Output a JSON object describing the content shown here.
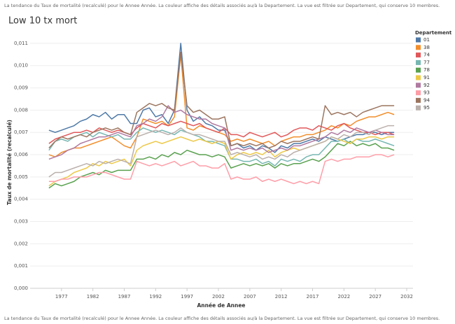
{
  "chart_data": {
    "type": "line",
    "subtitle": "La tendance du Taux de mortalité (recalculé) pour le Annee Année.  La couleur affiche des détails associés au/à la Departement. La vue est filtrée sur Departement, qui conserve 10 membres.",
    "title": "Low 10 tx mort",
    "caption": "La tendance du Taux de mortalité (recalculé) pour le Annee Année.  La couleur affiche des détails associés au/à la Departement. La vue est filtrée sur Departement, qui conserve 10 membres.",
    "x_label": "Année de Annee",
    "y_label": "Taux de mortalité (recalculé)",
    "legend_title": "Departement",
    "grid": true,
    "xlim": [
      1972,
      2033
    ],
    "xticks": [
      1977,
      1982,
      1987,
      1992,
      1997,
      2002,
      2007,
      2012,
      2017,
      2022,
      2027,
      2032
    ],
    "ylim": [
      0,
      0.0115
    ],
    "yticks": [
      {
        "value": 0,
        "label": "0,000"
      },
      {
        "value": 0.001,
        "label": "0,001"
      },
      {
        "value": 0.002,
        "label": "0,002"
      },
      {
        "value": 0.003,
        "label": "0,003"
      },
      {
        "value": 0.004,
        "label": "0,004"
      },
      {
        "value": 0.005,
        "label": "0,005"
      },
      {
        "value": 0.006,
        "label": "0,006"
      },
      {
        "value": 0.007,
        "label": "0,007"
      },
      {
        "value": 0.008,
        "label": "0,008"
      },
      {
        "value": 0.009,
        "label": "0,009"
      },
      {
        "value": 0.01,
        "label": "0,010"
      },
      {
        "value": 0.011,
        "label": "0,011"
      }
    ],
    "x": [
      1975,
      1976,
      1977,
      1978,
      1979,
      1980,
      1981,
      1982,
      1983,
      1984,
      1985,
      1986,
      1987,
      1988,
      1989,
      1990,
      1991,
      1992,
      1993,
      1994,
      1995,
      1996,
      1997,
      1998,
      1999,
      2000,
      2001,
      2002,
      2003,
      2004,
      2005,
      2006,
      2007,
      2008,
      2009,
      2010,
      2011,
      2012,
      2013,
      2014,
      2015,
      2016,
      2017,
      2018,
      2019,
      2020,
      2021,
      2022,
      2023,
      2024,
      2025,
      2026,
      2027,
      2028,
      2029,
      2030
    ],
    "series": [
      {
        "name": "01",
        "color": "#4e79a7",
        "values": [
          0.0071,
          0.007,
          0.0071,
          0.0072,
          0.0073,
          0.0075,
          0.0076,
          0.0078,
          0.0077,
          0.0079,
          0.0076,
          0.0078,
          0.0078,
          0.0074,
          0.0074,
          0.008,
          0.0081,
          0.0077,
          0.0078,
          0.0074,
          0.008,
          0.011,
          0.008,
          0.0075,
          0.0077,
          0.0074,
          0.0073,
          0.0071,
          0.0071,
          0.0064,
          0.0065,
          0.0063,
          0.0064,
          0.0062,
          0.0064,
          0.0063,
          0.0061,
          0.0064,
          0.0063,
          0.0065,
          0.0065,
          0.0066,
          0.0067,
          0.0066,
          0.0068,
          0.0067,
          0.0066,
          0.0067,
          0.0068,
          0.0069,
          0.0069,
          0.007,
          0.007,
          0.0069,
          0.007,
          0.007
        ]
      },
      {
        "name": "38",
        "color": "#f28e2b",
        "values": [
          0.006,
          0.0059,
          0.0061,
          0.0062,
          0.0063,
          0.0063,
          0.0064,
          0.0065,
          0.0066,
          0.0067,
          0.0068,
          0.0066,
          0.0064,
          0.0063,
          0.0068,
          0.0076,
          0.0075,
          0.0074,
          0.0075,
          0.0073,
          0.0077,
          0.0105,
          0.0072,
          0.0071,
          0.0073,
          0.0072,
          0.0071,
          0.007,
          0.0069,
          0.0066,
          0.0067,
          0.0066,
          0.0067,
          0.0066,
          0.0065,
          0.0066,
          0.0064,
          0.0066,
          0.0067,
          0.0068,
          0.0068,
          0.0069,
          0.0069,
          0.007,
          0.0071,
          0.0073,
          0.0072,
          0.0074,
          0.0073,
          0.0075,
          0.0076,
          0.0077,
          0.0077,
          0.0078,
          0.0079,
          0.0078
        ]
      },
      {
        "name": "74",
        "color": "#e15759",
        "values": [
          0.0065,
          0.0067,
          0.0068,
          0.0069,
          0.007,
          0.007,
          0.0071,
          0.007,
          0.0072,
          0.0071,
          0.007,
          0.0071,
          0.007,
          0.0069,
          0.0072,
          0.0074,
          0.0073,
          0.0072,
          0.0074,
          0.0073,
          0.0074,
          0.0075,
          0.0074,
          0.0073,
          0.0074,
          0.0072,
          0.0071,
          0.007,
          0.0072,
          0.0069,
          0.0069,
          0.0068,
          0.007,
          0.0069,
          0.0068,
          0.0069,
          0.007,
          0.0068,
          0.0069,
          0.0071,
          0.0072,
          0.0072,
          0.0071,
          0.0073,
          0.0072,
          0.0071,
          0.0073,
          0.0074,
          0.0072,
          0.0071,
          0.007,
          0.007,
          0.0069,
          0.007,
          0.007,
          0.0069
        ]
      },
      {
        "name": "77",
        "color": "#76b7b2",
        "values": [
          0.0062,
          0.0066,
          0.0067,
          0.0066,
          0.0068,
          0.0069,
          0.007,
          0.0068,
          0.007,
          0.0069,
          0.0068,
          0.0069,
          0.0067,
          0.0067,
          0.007,
          0.0072,
          0.0071,
          0.007,
          0.0071,
          0.007,
          0.0069,
          0.0071,
          0.007,
          0.0069,
          0.0068,
          0.0066,
          0.0066,
          0.0065,
          0.0064,
          0.0058,
          0.0058,
          0.0057,
          0.0057,
          0.0058,
          0.0056,
          0.0057,
          0.0055,
          0.0058,
          0.0057,
          0.0058,
          0.0057,
          0.0059,
          0.006,
          0.006,
          0.0063,
          0.0066,
          0.0066,
          0.0067,
          0.0065,
          0.0067,
          0.0066,
          0.0066,
          0.0067,
          0.0066,
          0.0065,
          0.0064
        ]
      },
      {
        "name": "78",
        "color": "#59a14f",
        "values": [
          0.0045,
          0.0047,
          0.0046,
          0.0047,
          0.0048,
          0.005,
          0.0051,
          0.0052,
          0.0051,
          0.0053,
          0.0052,
          0.0053,
          0.0053,
          0.0053,
          0.0058,
          0.0058,
          0.0059,
          0.0058,
          0.006,
          0.0059,
          0.0061,
          0.006,
          0.0062,
          0.0061,
          0.006,
          0.006,
          0.0059,
          0.006,
          0.0059,
          0.0054,
          0.0055,
          0.0056,
          0.0055,
          0.0056,
          0.0055,
          0.0056,
          0.0054,
          0.0056,
          0.0055,
          0.0056,
          0.0056,
          0.0057,
          0.0058,
          0.0057,
          0.0059,
          0.0062,
          0.0065,
          0.0064,
          0.0066,
          0.0064,
          0.0065,
          0.0064,
          0.0065,
          0.0063,
          0.0063,
          0.0062
        ]
      },
      {
        "name": "91",
        "color": "#edc948",
        "values": [
          0.0046,
          0.0048,
          0.0049,
          0.005,
          0.0052,
          0.0053,
          0.0054,
          0.0056,
          0.0055,
          0.0057,
          0.0056,
          0.0057,
          0.0058,
          0.0055,
          0.0062,
          0.0064,
          0.0065,
          0.0066,
          0.0065,
          0.0066,
          0.0067,
          0.0068,
          0.0067,
          0.0066,
          0.0067,
          0.0066,
          0.0065,
          0.0066,
          0.0065,
          0.0058,
          0.006,
          0.0061,
          0.006,
          0.0061,
          0.006,
          0.0062,
          0.0059,
          0.0061,
          0.0062,
          0.0063,
          0.0062,
          0.0063,
          0.0064,
          0.0065,
          0.0066,
          0.0068,
          0.0067,
          0.0066,
          0.0065,
          0.0067,
          0.0067,
          0.0068,
          0.0068,
          0.0067,
          0.0068,
          0.0068
        ]
      },
      {
        "name": "92",
        "color": "#b07aa1",
        "values": [
          0.0058,
          0.0059,
          0.006,
          0.0062,
          0.0063,
          0.0065,
          0.0066,
          0.0067,
          0.0068,
          0.0068,
          0.0069,
          0.007,
          0.0069,
          0.0068,
          0.0073,
          0.0074,
          0.0076,
          0.0075,
          0.0077,
          0.0082,
          0.0079,
          0.008,
          0.0078,
          0.0077,
          0.0076,
          0.0076,
          0.0074,
          0.0073,
          0.0072,
          0.0062,
          0.0063,
          0.0062,
          0.0063,
          0.0062,
          0.0063,
          0.0061,
          0.0062,
          0.0063,
          0.0062,
          0.0064,
          0.0064,
          0.0065,
          0.0066,
          0.0067,
          0.0068,
          0.007,
          0.0069,
          0.0071,
          0.007,
          0.0072,
          0.0071,
          0.007,
          0.0071,
          0.007,
          0.0069,
          0.0069
        ]
      },
      {
        "name": "93",
        "color": "#ff9da7",
        "values": [
          0.0048,
          0.0048,
          0.0049,
          0.0049,
          0.005,
          0.005,
          0.005,
          0.0051,
          0.0052,
          0.0052,
          0.0051,
          0.005,
          0.0049,
          0.0049,
          0.0057,
          0.0056,
          0.0055,
          0.0056,
          0.0055,
          0.0056,
          0.0057,
          0.0055,
          0.0056,
          0.0057,
          0.0055,
          0.0055,
          0.0054,
          0.0054,
          0.0056,
          0.0049,
          0.005,
          0.0049,
          0.0049,
          0.005,
          0.0048,
          0.0049,
          0.0048,
          0.0049,
          0.0048,
          0.0047,
          0.0048,
          0.0047,
          0.0048,
          0.0047,
          0.0057,
          0.0058,
          0.0057,
          0.0058,
          0.0058,
          0.0059,
          0.0059,
          0.0059,
          0.006,
          0.006,
          0.0059,
          0.006
        ]
      },
      {
        "name": "94",
        "color": "#9c755f",
        "values": [
          0.0063,
          0.0066,
          0.0068,
          0.0067,
          0.0068,
          0.0069,
          0.0068,
          0.007,
          0.0071,
          0.0072,
          0.0071,
          0.0072,
          0.007,
          0.0069,
          0.0079,
          0.0081,
          0.0083,
          0.0082,
          0.0083,
          0.0081,
          0.008,
          0.0106,
          0.0082,
          0.0079,
          0.008,
          0.0078,
          0.0076,
          0.0076,
          0.0077,
          0.0064,
          0.0065,
          0.0064,
          0.0065,
          0.0064,
          0.0065,
          0.0063,
          0.0064,
          0.0066,
          0.0065,
          0.0066,
          0.0066,
          0.0067,
          0.0068,
          0.0067,
          0.0082,
          0.0078,
          0.0079,
          0.0078,
          0.0079,
          0.0077,
          0.0079,
          0.008,
          0.0081,
          0.0082,
          0.0082,
          0.0082
        ]
      },
      {
        "name": "95",
        "color": "#bab0ac",
        "values": [
          0.005,
          0.0052,
          0.0052,
          0.0053,
          0.0054,
          0.0055,
          0.0056,
          0.0055,
          0.0057,
          0.0056,
          0.0057,
          0.0058,
          0.0057,
          0.0056,
          0.0068,
          0.0069,
          0.007,
          0.0071,
          0.007,
          0.0069,
          0.007,
          0.0072,
          0.007,
          0.0069,
          0.0069,
          0.0068,
          0.0067,
          0.0066,
          0.0066,
          0.006,
          0.0061,
          0.006,
          0.0059,
          0.006,
          0.0058,
          0.0059,
          0.0058,
          0.006,
          0.0059,
          0.0061,
          0.0062,
          0.0063,
          0.0064,
          0.0065,
          0.0066,
          0.0068,
          0.0067,
          0.0069,
          0.0068,
          0.007,
          0.007,
          0.0069,
          0.0071,
          0.0072,
          0.0073,
          0.0073
        ]
      }
    ]
  }
}
